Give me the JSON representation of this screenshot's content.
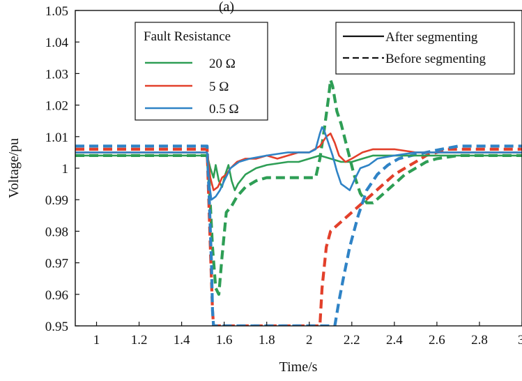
{
  "chart_data": {
    "type": "line",
    "title": "(a)",
    "xlabel": "Time/s",
    "ylabel": "Voltage/pu",
    "xlim": [
      0.9,
      3.0
    ],
    "ylim": [
      0.95,
      1.05
    ],
    "x_ticks": [
      1,
      1.2,
      1.4,
      1.6,
      1.8,
      2,
      2.2,
      2.4,
      2.6,
      2.8,
      3
    ],
    "x_tick_labels": [
      "1",
      "1.2",
      "1.4",
      "1.6",
      "1.8",
      "2",
      "2.2",
      "2.4",
      "2.6",
      "2.8",
      "3"
    ],
    "y_ticks": [
      0.95,
      0.96,
      0.97,
      0.98,
      0.99,
      1.0,
      1.01,
      1.02,
      1.03,
      1.04,
      1.05
    ],
    "y_tick_labels": [
      "0.95",
      "0.96",
      "0.97",
      "0.98",
      "0.99",
      "1",
      "1.01",
      "1.02",
      "1.03",
      "1.04",
      "1.05"
    ],
    "grid": false,
    "legends": {
      "resistance": {
        "title": "Fault Resistance",
        "placement": "top-left",
        "entries": [
          {
            "label": "20 Ω",
            "color": "#2e9e55"
          },
          {
            "label": "5 Ω",
            "color": "#e2402b"
          },
          {
            "label": "0.5 Ω",
            "color": "#2f83c6"
          }
        ]
      },
      "style": {
        "placement": "top-right",
        "entries": [
          {
            "label": "After segmenting",
            "dash": "solid"
          },
          {
            "label": "Before segmenting",
            "dash": "dashed"
          }
        ]
      }
    },
    "series": [
      {
        "resistance": "20 Ω",
        "segmenting": "Before segmenting",
        "color": "#2e9e55",
        "dash": "dashed",
        "points": [
          [
            0.9,
            1.004
          ],
          [
            1.52,
            1.004
          ],
          [
            1.53,
            0.995
          ],
          [
            1.545,
            0.975
          ],
          [
            1.56,
            0.962
          ],
          [
            1.575,
            0.96
          ],
          [
            1.59,
            0.972
          ],
          [
            1.61,
            0.986
          ],
          [
            1.635,
            0.988
          ],
          [
            1.66,
            0.991
          ],
          [
            1.7,
            0.994
          ],
          [
            1.75,
            0.996
          ],
          [
            1.8,
            0.997
          ],
          [
            2.03,
            0.997
          ],
          [
            2.05,
            1.003
          ],
          [
            2.07,
            1.012
          ],
          [
            2.09,
            1.022
          ],
          [
            2.1,
            1.028
          ],
          [
            2.11,
            1.026
          ],
          [
            2.13,
            1.018
          ],
          [
            2.15,
            1.014
          ],
          [
            2.18,
            1.006
          ],
          [
            2.21,
            0.998
          ],
          [
            2.24,
            0.992
          ],
          [
            2.27,
            0.989
          ],
          [
            2.3,
            0.989
          ],
          [
            2.35,
            0.992
          ],
          [
            2.4,
            0.995
          ],
          [
            2.45,
            0.998
          ],
          [
            2.5,
            1.0
          ],
          [
            2.55,
            1.002
          ],
          [
            2.6,
            1.003
          ],
          [
            2.7,
            1.004
          ],
          [
            3.0,
            1.004
          ]
        ]
      },
      {
        "resistance": "5 Ω",
        "segmenting": "Before segmenting",
        "color": "#e2402b",
        "dash": "dashed",
        "points": [
          [
            0.9,
            1.006
          ],
          [
            1.52,
            1.006
          ],
          [
            1.525,
            0.995
          ],
          [
            1.535,
            0.975
          ],
          [
            1.545,
            0.955
          ],
          [
            1.55,
            0.95
          ],
          [
            2.05,
            0.95
          ],
          [
            2.06,
            0.962
          ],
          [
            2.08,
            0.975
          ],
          [
            2.1,
            0.98
          ],
          [
            2.15,
            0.983
          ],
          [
            2.2,
            0.986
          ],
          [
            2.25,
            0.989
          ],
          [
            2.3,
            0.992
          ],
          [
            2.35,
            0.995
          ],
          [
            2.4,
            0.998
          ],
          [
            2.45,
            1.0
          ],
          [
            2.5,
            1.002
          ],
          [
            2.55,
            1.004
          ],
          [
            2.6,
            1.005
          ],
          [
            2.65,
            1.006
          ],
          [
            2.7,
            1.006
          ],
          [
            3.0,
            1.006
          ]
        ]
      },
      {
        "resistance": "0.5 Ω",
        "segmenting": "Before segmenting",
        "color": "#2f83c6",
        "dash": "dashed",
        "points": [
          [
            0.9,
            1.007
          ],
          [
            1.52,
            1.007
          ],
          [
            1.53,
            0.99
          ],
          [
            1.54,
            0.97
          ],
          [
            1.545,
            0.955
          ],
          [
            1.55,
            0.95
          ],
          [
            2.12,
            0.95
          ],
          [
            2.14,
            0.958
          ],
          [
            2.16,
            0.965
          ],
          [
            2.19,
            0.975
          ],
          [
            2.23,
            0.985
          ],
          [
            2.27,
            0.993
          ],
          [
            2.32,
            0.998
          ],
          [
            2.37,
            1.001
          ],
          [
            2.42,
            1.003
          ],
          [
            2.48,
            1.004
          ],
          [
            2.55,
            1.005
          ],
          [
            2.62,
            1.006
          ],
          [
            2.7,
            1.007
          ],
          [
            2.85,
            1.007
          ],
          [
            3.0,
            1.007
          ]
        ]
      },
      {
        "resistance": "20 Ω",
        "segmenting": "After segmenting",
        "color": "#2e9e55",
        "dash": "solid",
        "points": [
          [
            0.9,
            1.004
          ],
          [
            1.52,
            1.004
          ],
          [
            1.535,
            1.0
          ],
          [
            1.55,
            0.997
          ],
          [
            1.56,
            1.001
          ],
          [
            1.575,
            0.996
          ],
          [
            1.59,
            0.994
          ],
          [
            1.605,
            0.998
          ],
          [
            1.62,
            1.001
          ],
          [
            1.635,
            0.996
          ],
          [
            1.65,
            0.993
          ],
          [
            1.665,
            0.995
          ],
          [
            1.7,
            0.998
          ],
          [
            1.75,
            1.0
          ],
          [
            1.8,
            1.001
          ],
          [
            1.9,
            1.002
          ],
          [
            1.95,
            1.002
          ],
          [
            2.0,
            1.003
          ],
          [
            2.05,
            1.004
          ],
          [
            2.1,
            1.003
          ],
          [
            2.15,
            1.002
          ],
          [
            2.2,
            1.002
          ],
          [
            2.25,
            1.003
          ],
          [
            2.3,
            1.004
          ],
          [
            2.4,
            1.004
          ],
          [
            3.0,
            1.004
          ]
        ]
      },
      {
        "resistance": "5 Ω",
        "segmenting": "After segmenting",
        "color": "#e2402b",
        "dash": "solid",
        "points": [
          [
            0.9,
            1.005
          ],
          [
            1.52,
            1.005
          ],
          [
            1.535,
            0.997
          ],
          [
            1.55,
            0.993
          ],
          [
            1.57,
            0.994
          ],
          [
            1.59,
            0.997
          ],
          [
            1.61,
            0.998
          ],
          [
            1.63,
            1.0
          ],
          [
            1.66,
            1.002
          ],
          [
            1.7,
            1.003
          ],
          [
            1.75,
            1.003
          ],
          [
            1.8,
            1.004
          ],
          [
            1.85,
            1.003
          ],
          [
            1.9,
            1.004
          ],
          [
            1.95,
            1.005
          ],
          [
            2.0,
            1.005
          ],
          [
            2.05,
            1.007
          ],
          [
            2.08,
            1.01
          ],
          [
            2.1,
            1.011
          ],
          [
            2.12,
            1.008
          ],
          [
            2.14,
            1.004
          ],
          [
            2.17,
            1.002
          ],
          [
            2.2,
            1.003
          ],
          [
            2.25,
            1.005
          ],
          [
            2.3,
            1.006
          ],
          [
            2.4,
            1.006
          ],
          [
            2.5,
            1.005
          ],
          [
            3.0,
            1.005
          ]
        ]
      },
      {
        "resistance": "0.5 Ω",
        "segmenting": "After segmenting",
        "color": "#2f83c6",
        "dash": "solid",
        "points": [
          [
            0.9,
            1.005
          ],
          [
            1.52,
            1.005
          ],
          [
            1.53,
            0.995
          ],
          [
            1.54,
            0.99
          ],
          [
            1.56,
            0.991
          ],
          [
            1.58,
            0.993
          ],
          [
            1.6,
            0.996
          ],
          [
            1.63,
            1.0
          ],
          [
            1.67,
            1.002
          ],
          [
            1.72,
            1.003
          ],
          [
            1.8,
            1.004
          ],
          [
            1.9,
            1.005
          ],
          [
            2.0,
            1.005
          ],
          [
            2.03,
            1.006
          ],
          [
            2.05,
            1.011
          ],
          [
            2.06,
            1.013
          ],
          [
            2.07,
            1.012
          ],
          [
            2.09,
            1.008
          ],
          [
            2.11,
            1.004
          ],
          [
            2.13,
            0.999
          ],
          [
            2.15,
            0.995
          ],
          [
            2.17,
            0.994
          ],
          [
            2.19,
            0.993
          ],
          [
            2.21,
            0.996
          ],
          [
            2.24,
            1.0
          ],
          [
            2.28,
            1.001
          ],
          [
            2.32,
            1.003
          ],
          [
            2.4,
            1.004
          ],
          [
            2.5,
            1.005
          ],
          [
            3.0,
            1.005
          ]
        ]
      }
    ]
  }
}
